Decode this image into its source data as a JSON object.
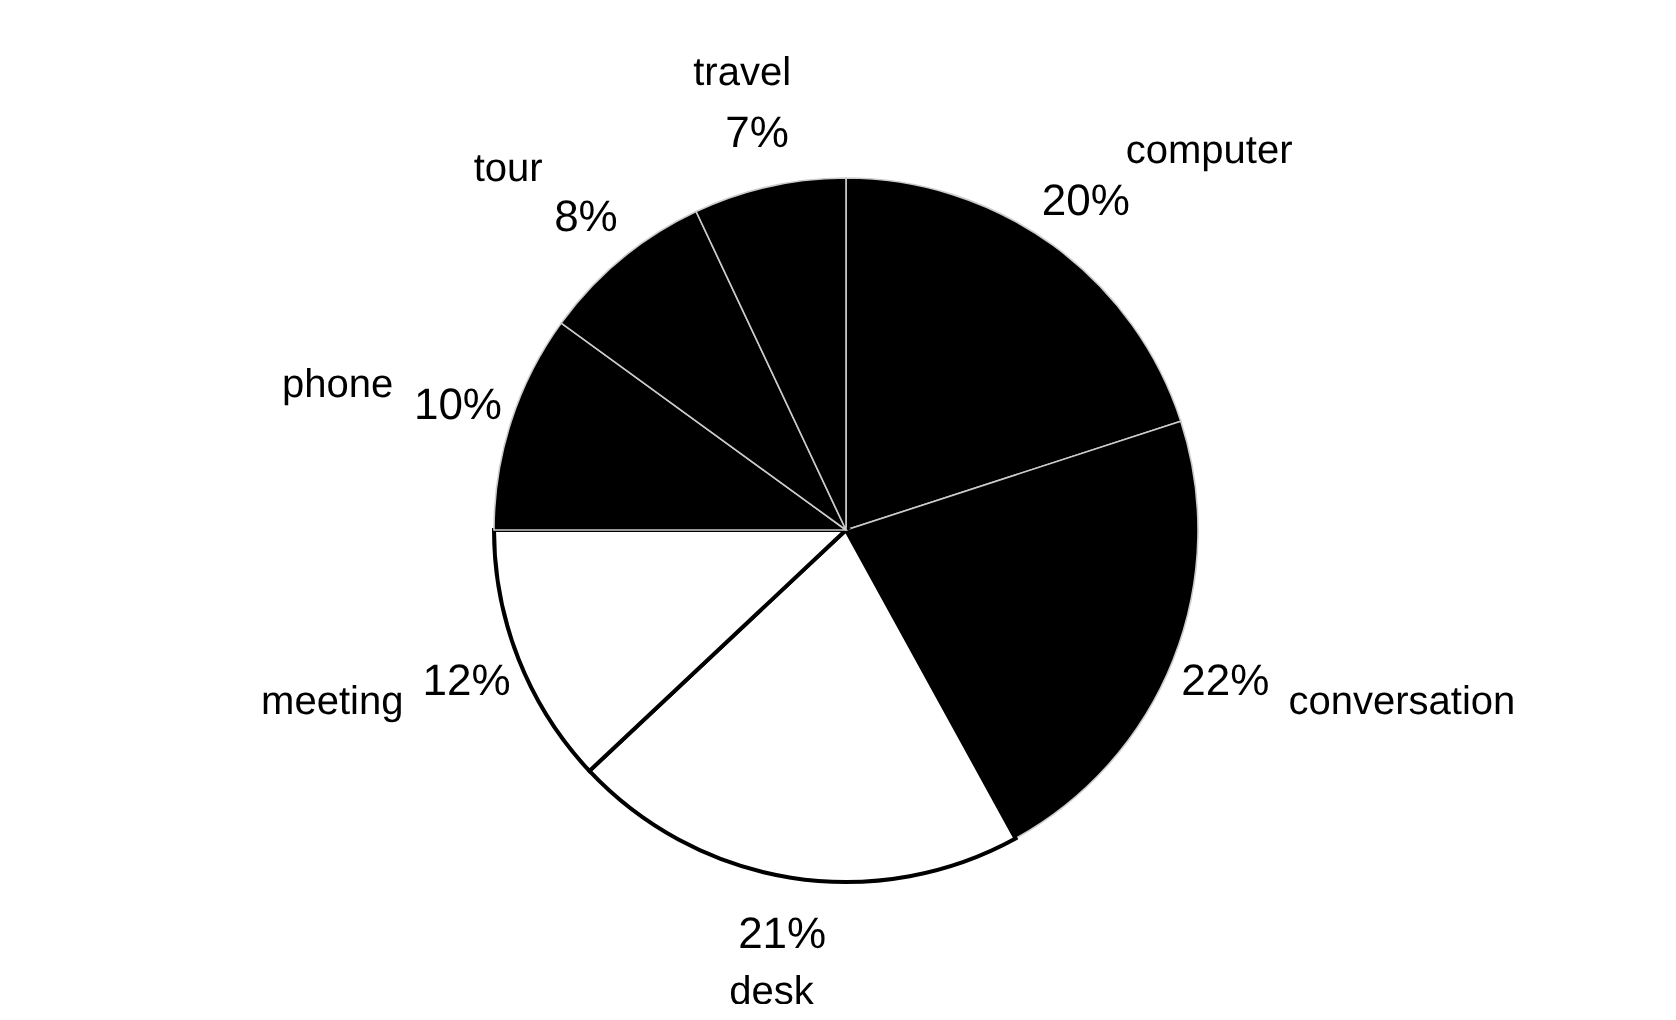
{
  "chart_data": {
    "type": "pie",
    "categories": [
      "computer",
      "conversation",
      "desk",
      "meeting",
      "phone",
      "tour",
      "travel"
    ],
    "values": [
      20,
      22,
      21,
      12,
      10,
      8,
      7
    ],
    "value_labels": [
      "20%",
      "22%",
      "21%",
      "12%",
      "10%",
      "8%",
      "7%"
    ],
    "colors": [
      "#000000",
      "#000000",
      "#ffffff",
      "#ffffff",
      "#000000",
      "#000000",
      "#000000"
    ],
    "legend": false
  }
}
